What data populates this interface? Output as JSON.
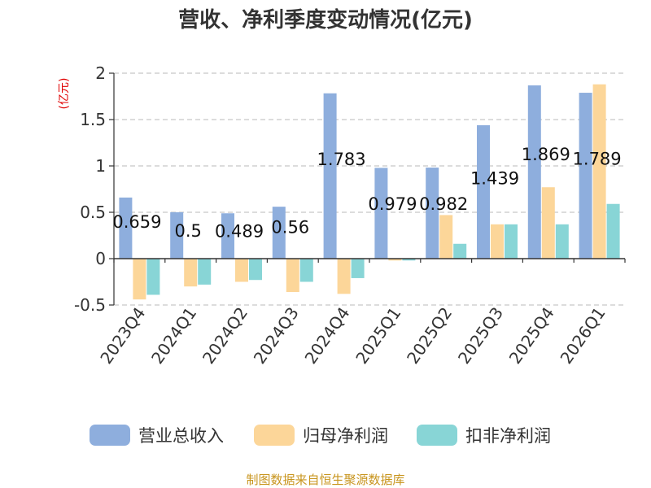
{
  "chart_data": {
    "type": "bar",
    "title": "营收、净利季度变动情况(亿元)",
    "ylabel": "(亿元)",
    "xlabel": "",
    "ylim": [
      -0.5,
      2
    ],
    "yticks": [
      -0.5,
      0,
      0.5,
      1,
      1.5,
      2
    ],
    "ytick_labels": [
      "-0.5",
      "0",
      "0.5",
      "1",
      "1.5",
      "2"
    ],
    "grid": true,
    "legend_position": "bottom",
    "categories": [
      "2023Q4",
      "2024Q1",
      "2024Q2",
      "2024Q3",
      "2024Q4",
      "2025Q1",
      "2025Q2",
      "2025Q3",
      "2025Q4",
      "2026Q1"
    ],
    "series": [
      {
        "name": "营业总收入",
        "color": "#8eaedd",
        "values": [
          0.659,
          0.5,
          0.489,
          0.56,
          1.783,
          0.979,
          0.982,
          1.439,
          1.869,
          1.789
        ]
      },
      {
        "name": "归母净利润",
        "color": "#fcd699",
        "values": [
          -0.44,
          -0.3,
          -0.25,
          -0.36,
          -0.38,
          -0.02,
          0.47,
          0.37,
          0.77,
          1.88
        ]
      },
      {
        "name": "扣非净利润",
        "color": "#88d5d6",
        "values": [
          -0.39,
          -0.28,
          -0.23,
          -0.25,
          -0.21,
          -0.02,
          0.16,
          0.37,
          0.37,
          0.59
        ]
      }
    ],
    "data_labels": [
      "0.659",
      "0.5",
      "0.489",
      "0.56",
      "1.783",
      "0.979",
      "0.982",
      "1.439",
      "1.869",
      "1.789"
    ],
    "source": "制图数据来自恒生聚源数据库"
  }
}
